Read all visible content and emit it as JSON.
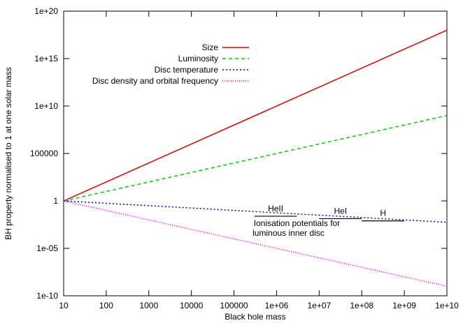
{
  "chart_data": {
    "type": "line",
    "xlabel": "Black hole mass",
    "ylabel": "BH property normalised to 1 at one solar mass",
    "x_scale": "log",
    "y_scale": "log",
    "xlim": [
      10,
      10000000000.0
    ],
    "ylim": [
      1e-10,
      1e+20
    ],
    "x_ticks": [
      {
        "value": 10,
        "label": "10"
      },
      {
        "value": 100,
        "label": "100"
      },
      {
        "value": 1000,
        "label": "1000"
      },
      {
        "value": 10000,
        "label": "10000"
      },
      {
        "value": 100000,
        "label": "100000"
      },
      {
        "value": 1000000,
        "label": "1e+06"
      },
      {
        "value": 10000000,
        "label": "1e+07"
      },
      {
        "value": 100000000,
        "label": "1e+08"
      },
      {
        "value": 1000000000,
        "label": "1e+09"
      },
      {
        "value": 10000000000,
        "label": "1e+10"
      }
    ],
    "y_ticks": [
      {
        "value": 1e-10,
        "label": "1e-10"
      },
      {
        "value": 1e-05,
        "label": "1e-05"
      },
      {
        "value": 1,
        "label": "1"
      },
      {
        "value": 100000,
        "label": "100000"
      },
      {
        "value": 10000000000.0,
        "label": "1e+10"
      },
      {
        "value": 1000000000000000.0,
        "label": "1e+15"
      },
      {
        "value": 1e+20,
        "label": "1e+20"
      }
    ],
    "grid": false,
    "legend_position": "top-center",
    "series": [
      {
        "name": "Size",
        "color": "#e00000",
        "dash": "solid",
        "x": [
          10,
          10000000000.0
        ],
        "y": [
          1,
          1e+18
        ]
      },
      {
        "name": "Luminosity",
        "color": "#00cc00",
        "dash": "dashed",
        "x": [
          10,
          10000000000.0
        ],
        "y": [
          1,
          1000000000.0
        ]
      },
      {
        "name": "Disc temperature",
        "color": "#0000cc",
        "dash": "dotted",
        "x": [
          10,
          10000000000.0
        ],
        "y": [
          1,
          0.0056
        ]
      },
      {
        "name": "Disc density and orbital frequency",
        "color": "#ee00ee",
        "dash": "dense-dotted",
        "x": [
          10,
          10000000000.0
        ],
        "y": [
          1,
          1e-09
        ]
      }
    ],
    "annotations": {
      "segments": [
        {
          "label": "HeII",
          "x_start": 300000,
          "x_end": 3000000,
          "y": 0.0244
        },
        {
          "label": "HeI",
          "x_start": 10000000,
          "x_end": 100000000,
          "y": 0.0135
        },
        {
          "label": "H",
          "x_start": 100000000,
          "x_end": 1000000000,
          "y": 0.0079
        }
      ],
      "note_lines": [
        "Ionisation potentials for",
        "luminous inner disc"
      ],
      "note_anchor": {
        "x": 3000000,
        "y": 0.0022
      }
    }
  }
}
